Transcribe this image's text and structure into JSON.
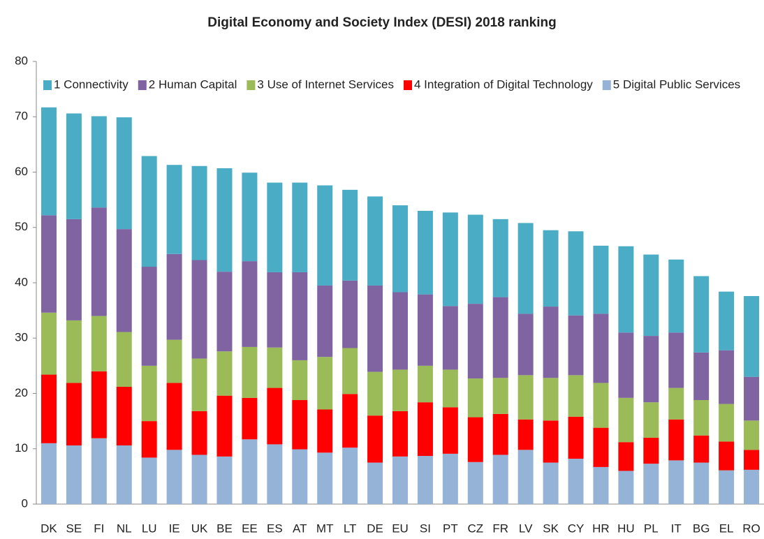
{
  "chart_data": {
    "type": "stacked_bar",
    "title": "Digital Economy and Society Index (DESI) 2018 ranking",
    "categories": [
      "DK",
      "SE",
      "FI",
      "NL",
      "LU",
      "IE",
      "UK",
      "BE",
      "EE",
      "ES",
      "AT",
      "MT",
      "LT",
      "DE",
      "EU",
      "SI",
      "PT",
      "CZ",
      "FR",
      "LV",
      "SK",
      "CY",
      "HR",
      "HU",
      "PL",
      "IT",
      "BG",
      "EL",
      "RO"
    ],
    "series": [
      {
        "name": "1 Connectivity",
        "color": "#4bacc6",
        "values": [
          19.5,
          19.1,
          16.5,
          20.2,
          20.0,
          16.1,
          17.0,
          18.7,
          16.0,
          16.2,
          16.2,
          18.1,
          16.4,
          16.1,
          15.7,
          15.1,
          16.9,
          16.1,
          14.1,
          16.4,
          13.8,
          15.2,
          12.3,
          15.6,
          14.7,
          13.2,
          13.8,
          10.6,
          14.6
        ]
      },
      {
        "name": "2 Human Capital",
        "color": "#8064a2",
        "values": [
          17.6,
          18.3,
          19.6,
          18.6,
          17.9,
          15.5,
          17.8,
          14.4,
          15.5,
          13.6,
          15.9,
          12.9,
          12.2,
          15.6,
          14.0,
          12.9,
          11.5,
          13.5,
          14.6,
          11.1,
          12.9,
          10.8,
          12.5,
          11.8,
          12.0,
          10.0,
          8.6,
          9.7,
          7.9
        ]
      },
      {
        "name": "3 Use of Internet Services",
        "color": "#9bbb59",
        "values": [
          11.2,
          11.3,
          10.0,
          9.9,
          10.0,
          7.8,
          9.5,
          8.0,
          9.2,
          7.3,
          7.2,
          9.5,
          8.3,
          7.9,
          7.5,
          6.6,
          6.8,
          7.0,
          6.5,
          8.0,
          7.7,
          7.5,
          8.1,
          8.0,
          6.4,
          5.7,
          6.4,
          6.8,
          5.3
        ]
      },
      {
        "name": "4 Integration of Digital Technology",
        "color": "#ff0000",
        "values": [
          12.4,
          11.3,
          12.1,
          10.6,
          6.6,
          12.1,
          7.9,
          11.0,
          7.5,
          10.2,
          8.9,
          7.8,
          9.7,
          8.5,
          8.2,
          9.7,
          8.4,
          8.1,
          7.4,
          5.5,
          7.6,
          7.6,
          7.1,
          5.2,
          4.7,
          7.4,
          4.9,
          5.2,
          3.6
        ]
      },
      {
        "name": "5 Digital Public Services",
        "color": "#95b3d7",
        "values": [
          11.0,
          10.6,
          11.9,
          10.6,
          8.4,
          9.8,
          8.9,
          8.6,
          11.7,
          10.8,
          9.9,
          9.3,
          10.2,
          7.5,
          8.6,
          8.7,
          9.1,
          7.6,
          8.9,
          9.8,
          7.5,
          8.2,
          6.7,
          6.0,
          7.3,
          7.9,
          7.5,
          6.1,
          6.2
        ]
      }
    ],
    "ylim": [
      0,
      80
    ],
    "yticks": [
      0,
      10,
      20,
      30,
      40,
      50,
      60,
      70,
      80
    ],
    "grid": false,
    "legend": "top"
  }
}
